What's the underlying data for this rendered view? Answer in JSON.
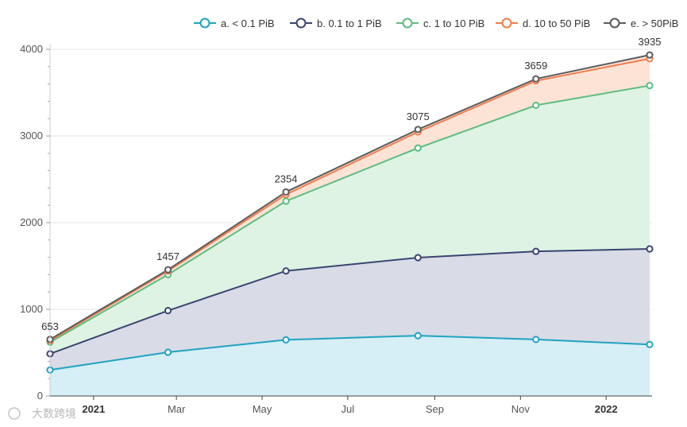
{
  "chart_data": {
    "type": "area",
    "stacked": true,
    "title": "",
    "xlabel": "",
    "ylabel": "",
    "x": [
      "2020-12-01",
      "2021-02-23",
      "2021-05-18",
      "2021-08-20",
      "2021-11-12",
      "2022-02-01"
    ],
    "ylim": [
      0,
      4000
    ],
    "y_ticks": [
      0,
      1000,
      2000,
      3000,
      4000
    ],
    "x_ticks": [
      {
        "date": "2021-01-01",
        "label": "2021",
        "strong": true
      },
      {
        "date": "2021-03-01",
        "label": "Mar",
        "strong": false
      },
      {
        "date": "2021-05-01",
        "label": "May",
        "strong": false
      },
      {
        "date": "2021-07-01",
        "label": "Jul",
        "strong": false
      },
      {
        "date": "2021-09-01",
        "label": "Sep",
        "strong": false
      },
      {
        "date": "2021-11-01",
        "label": "Nov",
        "strong": false
      },
      {
        "date": "2022-01-01",
        "label": "2022",
        "strong": true
      }
    ],
    "series": [
      {
        "name": "a. < 0.1 PiB",
        "color": "#1fa3c2",
        "fill": "#d6eef5",
        "values": [
          300,
          505,
          648,
          696,
          652,
          594
        ]
      },
      {
        "name": "b. 0.1 to 1 PiB",
        "color": "#3a4670",
        "fill": "#d9dbe6",
        "values": [
          187,
          480,
          795,
          900,
          1017,
          1103
        ]
      },
      {
        "name": "c. 1 to 10 PiB",
        "color": "#5cbd80",
        "fill": "#dff3e4",
        "values": [
          133,
          415,
          805,
          1265,
          1685,
          1885
        ]
      },
      {
        "name": "d. 10 to 50 PiB",
        "color": "#ef7d4d",
        "fill": "#fde3d6",
        "values": [
          18,
          42,
          77,
          186,
          282,
          310
        ]
      },
      {
        "name": "e. > 50PiB",
        "color": "#5c5c5c",
        "fill": "#fde3d6",
        "values": [
          15,
          15,
          29,
          28,
          23,
          43
        ]
      }
    ],
    "totals": [
      653,
      1457,
      2354,
      3075,
      3659,
      3935
    ],
    "legend_position": "top-right",
    "grid": true
  },
  "watermark": "大数跨境"
}
